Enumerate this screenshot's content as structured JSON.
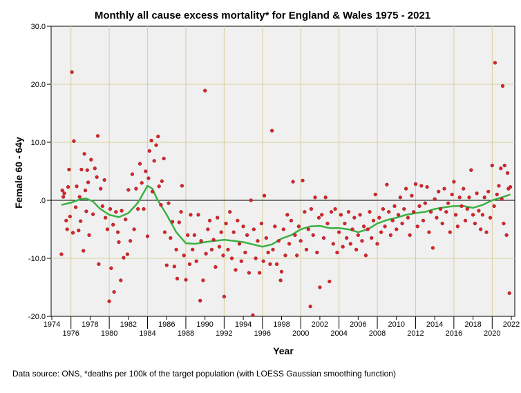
{
  "chart_data": {
    "type": "scatter",
    "title": "Monthly all cause excess mortality* for England & Wales 1975 - 2021",
    "xlabel": "Year",
    "ylabel": "Female 60 - 64y",
    "xlim": [
      1974,
      2022.4
    ],
    "ylim": [
      -20,
      30
    ],
    "xticks_top_row": [
      "1974",
      "1978",
      "1982",
      "1986",
      "1990",
      "1994",
      "1998",
      "2002",
      "2006",
      "2010",
      "2014",
      "2018",
      "2022"
    ],
    "xticks_bottom_row": [
      "1976",
      "1980",
      "1984",
      "1988",
      "1992",
      "1996",
      "2000",
      "2004",
      "2008",
      "2012",
      "2016",
      "2020"
    ],
    "yticks": [
      "-20.0",
      "-10.0",
      ".0",
      "10.0",
      "20.0",
      "30.0"
    ],
    "grid": true,
    "point_color": "#d9252b",
    "smooth_color": "#3cb043",
    "smooth": [
      [
        1975,
        -0.8
      ],
      [
        1976,
        -0.4
      ],
      [
        1977,
        0.2
      ],
      [
        1977.6,
        0.3
      ],
      [
        1978.3,
        -0.2
      ],
      [
        1979,
        -1.4
      ],
      [
        1980,
        -2.5
      ],
      [
        1981,
        -2.9
      ],
      [
        1982,
        -2.2
      ],
      [
        1983,
        -0.4
      ],
      [
        1984,
        2.5
      ],
      [
        1984.5,
        2
      ],
      [
        1985,
        0.2
      ],
      [
        1986,
        -2.5
      ],
      [
        1987,
        -5.5
      ],
      [
        1988,
        -7.4
      ],
      [
        1989,
        -7.5
      ],
      [
        1990,
        -7.2
      ],
      [
        1991,
        -7
      ],
      [
        1992,
        -6.8
      ],
      [
        1993,
        -7
      ],
      [
        1994,
        -7.2
      ],
      [
        1995,
        -7.6
      ],
      [
        1996,
        -8
      ],
      [
        1997,
        -7.6
      ],
      [
        1998,
        -6.6
      ],
      [
        1999,
        -6
      ],
      [
        2000,
        -5
      ],
      [
        2001,
        -4.5
      ],
      [
        2002,
        -4.4
      ],
      [
        2003,
        -4.8
      ],
      [
        2004,
        -4.8
      ],
      [
        2005,
        -5
      ],
      [
        2006,
        -5.5
      ],
      [
        2007,
        -5
      ],
      [
        2008,
        -4
      ],
      [
        2009,
        -3.4
      ],
      [
        2010,
        -3
      ],
      [
        2011,
        -2.5
      ],
      [
        2012,
        -2.2
      ],
      [
        2013,
        -2
      ],
      [
        2014,
        -1.5
      ],
      [
        2015,
        -1.2
      ],
      [
        2016,
        -1
      ],
      [
        2017,
        -1
      ],
      [
        2018,
        -1.3
      ],
      [
        2019,
        -0.8
      ],
      [
        2020,
        0
      ],
      [
        2021,
        0.5
      ],
      [
        2021.9,
        1
      ]
    ],
    "points": [
      [
        1975,
        -9.3
      ],
      [
        1975.1,
        1.7
      ],
      [
        1975.2,
        0.6
      ],
      [
        1975.3,
        1.2
      ],
      [
        1975.5,
        -3.5
      ],
      [
        1975.6,
        -5
      ],
      [
        1975.7,
        2.3
      ],
      [
        1975.8,
        5.3
      ],
      [
        1975.9,
        -2.8
      ],
      [
        1976.1,
        22.1
      ],
      [
        1976.2,
        -5.6
      ],
      [
        1976.3,
        10.2
      ],
      [
        1976.5,
        -1.2
      ],
      [
        1976.6,
        2.4
      ],
      [
        1976.8,
        -5.2
      ],
      [
        1976.9,
        0.6
      ],
      [
        1977,
        -3.6
      ],
      [
        1977.1,
        5.3
      ],
      [
        1977.3,
        -8.7
      ],
      [
        1977.4,
        8
      ],
      [
        1977.5,
        1.7
      ],
      [
        1977.6,
        -1.9
      ],
      [
        1977.7,
        5.2
      ],
      [
        1977.8,
        3.1
      ],
      [
        1977.9,
        -6
      ],
      [
        1978.1,
        7
      ],
      [
        1978.3,
        -2.4
      ],
      [
        1978.5,
        5.5
      ],
      [
        1978.7,
        4
      ],
      [
        1978.8,
        11.1
      ],
      [
        1978.9,
        -11
      ],
      [
        1979.1,
        2
      ],
      [
        1979.3,
        -1
      ],
      [
        1979.5,
        3.5
      ],
      [
        1979.6,
        -3
      ],
      [
        1979.8,
        -5
      ],
      [
        1980,
        -17.4
      ],
      [
        1980.1,
        -1.5
      ],
      [
        1980.2,
        -11.7
      ],
      [
        1980.4,
        -4.2
      ],
      [
        1980.5,
        -15.8
      ],
      [
        1980.7,
        -2
      ],
      [
        1980.9,
        -5.5
      ],
      [
        1981,
        -7.2
      ],
      [
        1981.2,
        -13.8
      ],
      [
        1981.3,
        -1.8
      ],
      [
        1981.5,
        -9.9
      ],
      [
        1981.7,
        -3.3
      ],
      [
        1981.9,
        -9.3
      ],
      [
        1982,
        1.8
      ],
      [
        1982.2,
        -7
      ],
      [
        1982.4,
        4.5
      ],
      [
        1982.6,
        -5
      ],
      [
        1982.8,
        2
      ],
      [
        1983,
        -1.5
      ],
      [
        1983.2,
        6.3
      ],
      [
        1983.4,
        3
      ],
      [
        1983.6,
        -1.5
      ],
      [
        1983.8,
        5
      ],
      [
        1984,
        -6.2
      ],
      [
        1984.1,
        3.8
      ],
      [
        1984.2,
        8.5
      ],
      [
        1984.4,
        10.3
      ],
      [
        1984.5,
        1.5
      ],
      [
        1984.7,
        6.8
      ],
      [
        1984.9,
        9.5
      ],
      [
        1985.1,
        11
      ],
      [
        1985.2,
        2.4
      ],
      [
        1985.4,
        -0.8
      ],
      [
        1985.5,
        3.3
      ],
      [
        1985.7,
        7.2
      ],
      [
        1985.8,
        -5.5
      ],
      [
        1986,
        -11.2
      ],
      [
        1986.2,
        -0.5
      ],
      [
        1986.4,
        -6.5
      ],
      [
        1986.6,
        -3.7
      ],
      [
        1986.8,
        -11.4
      ],
      [
        1987,
        -8.5
      ],
      [
        1987.1,
        -13.5
      ],
      [
        1987.3,
        -3.8
      ],
      [
        1987.5,
        -2
      ],
      [
        1987.6,
        2.5
      ],
      [
        1987.8,
        -9.5
      ],
      [
        1988,
        -13.7
      ],
      [
        1988.2,
        -6
      ],
      [
        1988.4,
        -11
      ],
      [
        1988.5,
        -2.5
      ],
      [
        1988.7,
        -8.5
      ],
      [
        1988.9,
        -6
      ],
      [
        1989.1,
        -10.5
      ],
      [
        1989.3,
        -2.5
      ],
      [
        1989.5,
        -17.3
      ],
      [
        1989.6,
        -7
      ],
      [
        1989.8,
        -13.8
      ],
      [
        1990,
        18.9
      ],
      [
        1990.1,
        -9.2
      ],
      [
        1990.3,
        -5
      ],
      [
        1990.5,
        -3.5
      ],
      [
        1990.7,
        -8.5
      ],
      [
        1990.9,
        -6.8
      ],
      [
        1991.1,
        -11.5
      ],
      [
        1991.3,
        -3
      ],
      [
        1991.5,
        -8
      ],
      [
        1991.7,
        -5.5
      ],
      [
        1991.9,
        -9.5
      ],
      [
        1992,
        -16.6
      ],
      [
        1992.2,
        -4
      ],
      [
        1992.4,
        -8.5
      ],
      [
        1992.6,
        -2
      ],
      [
        1992.8,
        -10
      ],
      [
        1993,
        -5.5
      ],
      [
        1993.2,
        -12
      ],
      [
        1993.4,
        -3.5
      ],
      [
        1993.6,
        -7.5
      ],
      [
        1993.8,
        -10.5
      ],
      [
        1994,
        -4.5
      ],
      [
        1994.2,
        -9
      ],
      [
        1994.4,
        -6
      ],
      [
        1994.6,
        -12.5
      ],
      [
        1994.8,
        0
      ],
      [
        1995,
        -19.8
      ],
      [
        1995.1,
        -5
      ],
      [
        1995.3,
        -10
      ],
      [
        1995.5,
        -7
      ],
      [
        1995.7,
        -12.5
      ],
      [
        1995.9,
        -4
      ],
      [
        1996.1,
        -10.5
      ],
      [
        1996.2,
        0.8
      ],
      [
        1996.4,
        -6.5
      ],
      [
        1996.6,
        -9
      ],
      [
        1996.8,
        -11
      ],
      [
        1997,
        12
      ],
      [
        1997.1,
        -8.5
      ],
      [
        1997.3,
        -4.5
      ],
      [
        1997.5,
        -11
      ],
      [
        1997.7,
        -7
      ],
      [
        1997.9,
        -13.8
      ],
      [
        1998,
        -12.3
      ],
      [
        1998.2,
        -5
      ],
      [
        1998.4,
        -9.5
      ],
      [
        1998.6,
        -2.5
      ],
      [
        1998.8,
        -7.5
      ],
      [
        1999,
        -3.5
      ],
      [
        1999.2,
        3.2
      ],
      [
        1999.4,
        -6
      ],
      [
        1999.6,
        -9.5
      ],
      [
        1999.8,
        -4.5
      ],
      [
        2000,
        -7
      ],
      [
        2000.2,
        3.4
      ],
      [
        2000.4,
        -2
      ],
      [
        2000.6,
        -8.5
      ],
      [
        2000.8,
        -5
      ],
      [
        2001,
        -18.3
      ],
      [
        2001.1,
        -1.5
      ],
      [
        2001.3,
        -6
      ],
      [
        2001.5,
        0.5
      ],
      [
        2001.7,
        -9
      ],
      [
        2001.9,
        -3
      ],
      [
        2002,
        -15
      ],
      [
        2002.2,
        -2.5
      ],
      [
        2002.4,
        -6.5
      ],
      [
        2002.6,
        0.5
      ],
      [
        2002.8,
        -4
      ],
      [
        2003,
        -14
      ],
      [
        2003.2,
        -2
      ],
      [
        2003.4,
        -7.5
      ],
      [
        2003.6,
        -1.5
      ],
      [
        2003.8,
        -9
      ],
      [
        2004,
        -5.5
      ],
      [
        2004.2,
        -2.5
      ],
      [
        2004.4,
        -8
      ],
      [
        2004.6,
        -4
      ],
      [
        2004.8,
        -6.5
      ],
      [
        2005,
        -2
      ],
      [
        2005.2,
        -7.5
      ],
      [
        2005.4,
        -5
      ],
      [
        2005.6,
        -3
      ],
      [
        2005.8,
        -8.5
      ],
      [
        2006,
        -6
      ],
      [
        2006.2,
        -2.5
      ],
      [
        2006.4,
        -7
      ],
      [
        2006.6,
        -4.5
      ],
      [
        2006.8,
        -9.5
      ],
      [
        2007,
        -5
      ],
      [
        2007.2,
        -2
      ],
      [
        2007.4,
        -6.5
      ],
      [
        2007.6,
        -3.5
      ],
      [
        2007.8,
        1
      ],
      [
        2008,
        -7.5
      ],
      [
        2008.2,
        -3
      ],
      [
        2008.4,
        -5.5
      ],
      [
        2008.6,
        -1.5
      ],
      [
        2008.8,
        -4.5
      ],
      [
        2009,
        2.7
      ],
      [
        2009.2,
        -2
      ],
      [
        2009.4,
        -6
      ],
      [
        2009.6,
        -3.5
      ],
      [
        2009.8,
        -1
      ],
      [
        2010,
        -5
      ],
      [
        2010.2,
        -2.5
      ],
      [
        2010.4,
        0.5
      ],
      [
        2010.6,
        -4
      ],
      [
        2010.8,
        -1.5
      ],
      [
        2011,
        2
      ],
      [
        2011.2,
        -3
      ],
      [
        2011.4,
        -6
      ],
      [
        2011.6,
        0.8
      ],
      [
        2011.8,
        -2
      ],
      [
        2012,
        2.8
      ],
      [
        2012.2,
        -4.5
      ],
      [
        2012.4,
        -1
      ],
      [
        2012.6,
        2.5
      ],
      [
        2012.8,
        -3.5
      ],
      [
        2013,
        -0.5
      ],
      [
        2013.2,
        2.3
      ],
      [
        2013.4,
        -5.5
      ],
      [
        2013.6,
        -2
      ],
      [
        2013.8,
        -8.2
      ],
      [
        2014,
        0.2
      ],
      [
        2014.2,
        -3
      ],
      [
        2014.4,
        1.5
      ],
      [
        2014.6,
        -1.5
      ],
      [
        2014.8,
        -4
      ],
      [
        2015,
        2
      ],
      [
        2015.2,
        -2
      ],
      [
        2015.4,
        -0.5
      ],
      [
        2015.6,
        -5.5
      ],
      [
        2015.8,
        1
      ],
      [
        2016,
        3.2
      ],
      [
        2016.2,
        -2.5
      ],
      [
        2016.4,
        -4.5
      ],
      [
        2016.6,
        0.5
      ],
      [
        2016.8,
        -1
      ],
      [
        2017,
        2
      ],
      [
        2017.2,
        -3.5
      ],
      [
        2017.4,
        -1.5
      ],
      [
        2017.6,
        0.5
      ],
      [
        2017.8,
        5.2
      ],
      [
        2018,
        -2.5
      ],
      [
        2018.2,
        -4
      ],
      [
        2018.4,
        1.2
      ],
      [
        2018.6,
        -1.8
      ],
      [
        2018.8,
        -5
      ],
      [
        2019,
        -2.5
      ],
      [
        2019.2,
        0.5
      ],
      [
        2019.4,
        -5.5
      ],
      [
        2019.6,
        1.5
      ],
      [
        2019.8,
        -3
      ],
      [
        2020,
        6
      ],
      [
        2020.2,
        -1
      ],
      [
        2020.3,
        23.7
      ],
      [
        2020.5,
        1
      ],
      [
        2020.7,
        2.5
      ],
      [
        2020.9,
        5.5
      ],
      [
        2021,
        0.2
      ],
      [
        2021.1,
        19.7
      ],
      [
        2021.2,
        -4
      ],
      [
        2021.3,
        6
      ],
      [
        2021.5,
        -6
      ],
      [
        2021.6,
        4.7
      ],
      [
        2021.7,
        2
      ],
      [
        2021.8,
        -16
      ],
      [
        2021.9,
        2.3
      ]
    ]
  },
  "footnote": "Data source: ONS, *deaths per 100k of the target population (with LOESS Gaussian smoothing function)"
}
